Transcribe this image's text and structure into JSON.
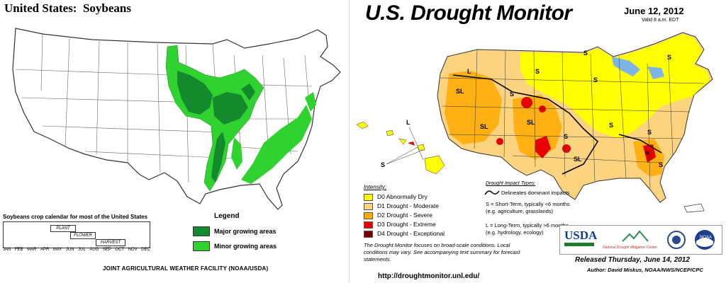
{
  "soybeans": {
    "title": "United States:  Soybeans",
    "calendar_title": "Soybeans crop calendar for most of the United States",
    "stages": [
      "PLANT",
      "FLOWER",
      "HARVEST"
    ],
    "months": [
      "JAN",
      "FEB",
      "MAR",
      "APR",
      "MAY",
      "JUN",
      "JUL",
      "AUG",
      "SEP",
      "OCT",
      "NOV",
      "DEC"
    ],
    "legend_title": "Legend",
    "legend": [
      {
        "label": "Major growing areas",
        "color": "#138a2c"
      },
      {
        "label": "Minor growing areas",
        "color": "#2fd22f"
      }
    ],
    "credit": "JOINT AGRICULTURAL WEATHER FACILITY (NOAA/USDA)"
  },
  "drought": {
    "title": "U.S. Drought Monitor",
    "date": "June 12, 2012",
    "valid": "Valid 8 a.m. EDT",
    "intensity_title": "Intensity:",
    "intensity": [
      {
        "label": "D0 Abnormally Dry",
        "color": "#ffff00"
      },
      {
        "label": "D1 Drought - Moderate",
        "color": "#fcd37f"
      },
      {
        "label": "D2 Drought - Severe",
        "color": "#ffaa00"
      },
      {
        "label": "D3 Drought - Extreme",
        "color": "#e60000"
      },
      {
        "label": "D4 Drought - Exceptional",
        "color": "#730000"
      }
    ],
    "impact_title": "Drought Impact Types:",
    "impact_line": "Delineates dominant impacts",
    "impact_s_1": "S = Short-Term, typically <6 months",
    "impact_s_2": "(e.g. agriculture, grasslands)",
    "impact_l_1": "L = Long-Term, typically >6 months",
    "impact_l_2": "(e.g. hydrology, ecology)",
    "note": "The Drought Monitor focuses on broad-scale conditions. Local conditions may vary.  See accompanying text summary for forecast statements.",
    "url": "http://droughtmonitor.unl.edu/",
    "released": "Released Thursday, June 14, 2012",
    "author": "Author: David Miskus, NOAA/NWS/NCEP/CPC",
    "logo_usda": "USDA",
    "logo_ndmc": "National Drought Mitigation Center",
    "logo_noaa": "NOAA",
    "map_labels": {
      "S": "S",
      "L": "L",
      "SL": "SL"
    }
  }
}
